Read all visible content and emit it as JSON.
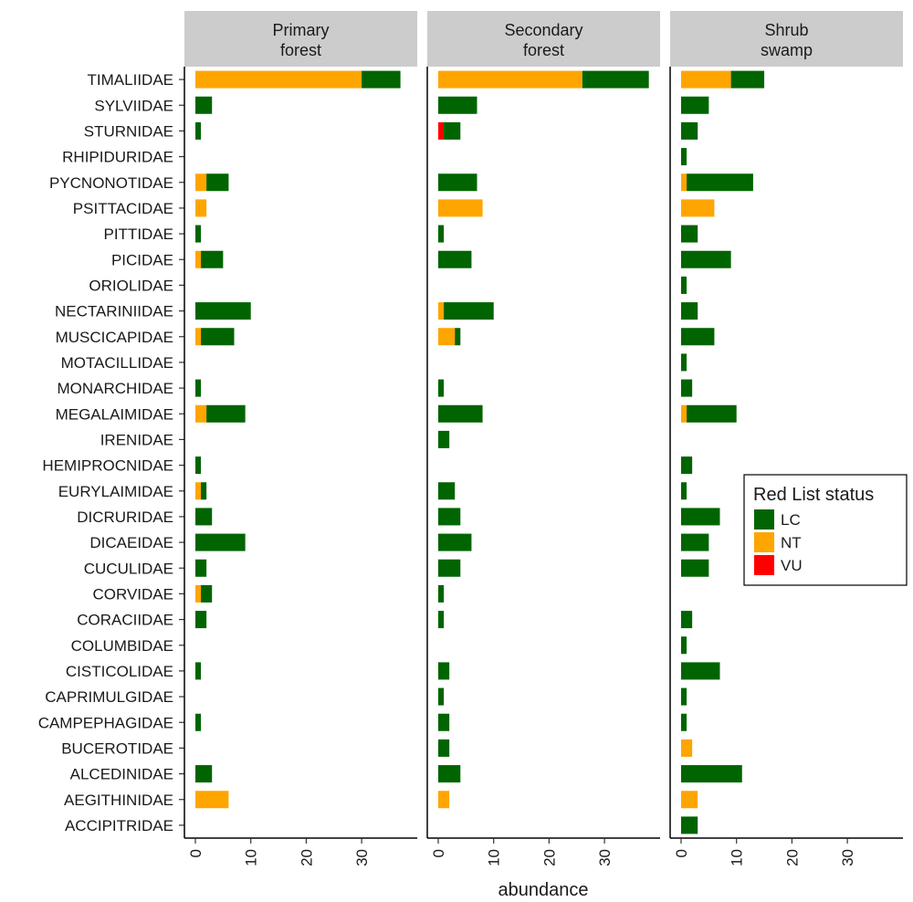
{
  "chart_data": {
    "type": "bar",
    "orientation": "horizontal",
    "stacked": true,
    "xlabel": "abundance",
    "ylabel": "",
    "xlim": [
      0,
      39
    ],
    "xticks": [
      "0",
      "10",
      "20",
      "30"
    ],
    "grid": false,
    "legend": {
      "title": "Red List status",
      "placement": "right",
      "entries": [
        {
          "key": "LC",
          "label": "LC",
          "color": "#006400"
        },
        {
          "key": "NT",
          "label": "NT",
          "color": "#FFA500"
        },
        {
          "key": "VU",
          "label": "VU",
          "color": "#FF0000"
        }
      ]
    },
    "stack_order": [
      "VU",
      "NT",
      "LC"
    ],
    "categories": [
      "TIMALIIDAE",
      "SYLVIIDAE",
      "STURNIDAE",
      "RHIPIDURIDAE",
      "PYCNONOTIDAE",
      "PSITTACIDAE",
      "PITTIDAE",
      "PICIDAE",
      "ORIOLIDAE",
      "NECTARINIIDAE",
      "MUSCICAPIDAE",
      "MOTACILLIDAE",
      "MONARCHIDAE",
      "MEGALAIMIDAE",
      "IRENIDAE",
      "HEMIPROCNIDAE",
      "EURYLAIMIDAE",
      "DICRURIDAE",
      "DICAEIDAE",
      "CUCULIDAE",
      "CORVIDAE",
      "CORACIIDAE",
      "COLUMBIDAE",
      "CISTICOLIDAE",
      "CAPRIMULGIDAE",
      "CAMPEPHAGIDAE",
      "BUCEROTIDAE",
      "ALCEDINIDAE",
      "AEGITHINIDAE",
      "ACCIPITRIDAE"
    ],
    "panels": [
      {
        "title_lines": [
          "Primary",
          "forest"
        ],
        "series": [
          {
            "name": "VU",
            "values": [
              0,
              0,
              0,
              0,
              0,
              0,
              0,
              0,
              0,
              0,
              0,
              0,
              0,
              0,
              0,
              0,
              0,
              0,
              0,
              0,
              0,
              0,
              0,
              0,
              0,
              0,
              0,
              0,
              0,
              0
            ]
          },
          {
            "name": "NT",
            "values": [
              30,
              0,
              0,
              0,
              2,
              2,
              0,
              1,
              0,
              0,
              1,
              0,
              0,
              2,
              0,
              0,
              1,
              0,
              0,
              0,
              1,
              0,
              0,
              0,
              0,
              0,
              0,
              0,
              6,
              0
            ]
          },
          {
            "name": "LC",
            "values": [
              7,
              3,
              1,
              0,
              4,
              0,
              1,
              4,
              0,
              10,
              6,
              0,
              1,
              7,
              0,
              1,
              1,
              3,
              9,
              2,
              2,
              2,
              0,
              1,
              0,
              1,
              0,
              3,
              0,
              0
            ]
          }
        ]
      },
      {
        "title_lines": [
          "Secondary",
          "forest"
        ],
        "series": [
          {
            "name": "VU",
            "values": [
              0,
              0,
              1,
              0,
              0,
              0,
              0,
              0,
              0,
              0,
              0,
              0,
              0,
              0,
              0,
              0,
              0,
              0,
              0,
              0,
              0,
              0,
              0,
              0,
              0,
              0,
              0,
              0,
              0,
              0
            ]
          },
          {
            "name": "NT",
            "values": [
              26,
              0,
              0,
              0,
              0,
              8,
              0,
              0,
              0,
              1,
              3,
              0,
              0,
              0,
              0,
              0,
              0,
              0,
              0,
              0,
              0,
              0,
              0,
              0,
              0,
              0,
              0,
              0,
              2,
              0
            ]
          },
          {
            "name": "LC",
            "values": [
              12,
              7,
              3,
              0,
              7,
              0,
              1,
              6,
              0,
              9,
              1,
              0,
              1,
              8,
              2,
              0,
              3,
              4,
              6,
              4,
              1,
              1,
              0,
              2,
              1,
              2,
              2,
              4,
              0,
              0
            ]
          }
        ]
      },
      {
        "title_lines": [
          "Shrub",
          "swamp"
        ],
        "series": [
          {
            "name": "VU",
            "values": [
              0,
              0,
              0,
              0,
              0,
              0,
              0,
              0,
              0,
              0,
              0,
              0,
              0,
              0,
              0,
              0,
              0,
              0,
              0,
              0,
              0,
              0,
              0,
              0,
              0,
              0,
              0,
              0,
              0,
              0
            ]
          },
          {
            "name": "NT",
            "values": [
              9,
              0,
              0,
              0,
              1,
              6,
              0,
              0,
              0,
              0,
              0,
              0,
              0,
              1,
              0,
              0,
              0,
              0,
              0,
              0,
              0,
              0,
              0,
              0,
              0,
              0,
              2,
              0,
              3,
              0
            ]
          },
          {
            "name": "LC",
            "values": [
              6,
              5,
              3,
              1,
              12,
              0,
              3,
              9,
              1,
              3,
              6,
              1,
              2,
              9,
              0,
              2,
              1,
              7,
              5,
              5,
              0,
              2,
              1,
              7,
              1,
              1,
              0,
              11,
              0,
              3
            ]
          }
        ]
      }
    ]
  }
}
